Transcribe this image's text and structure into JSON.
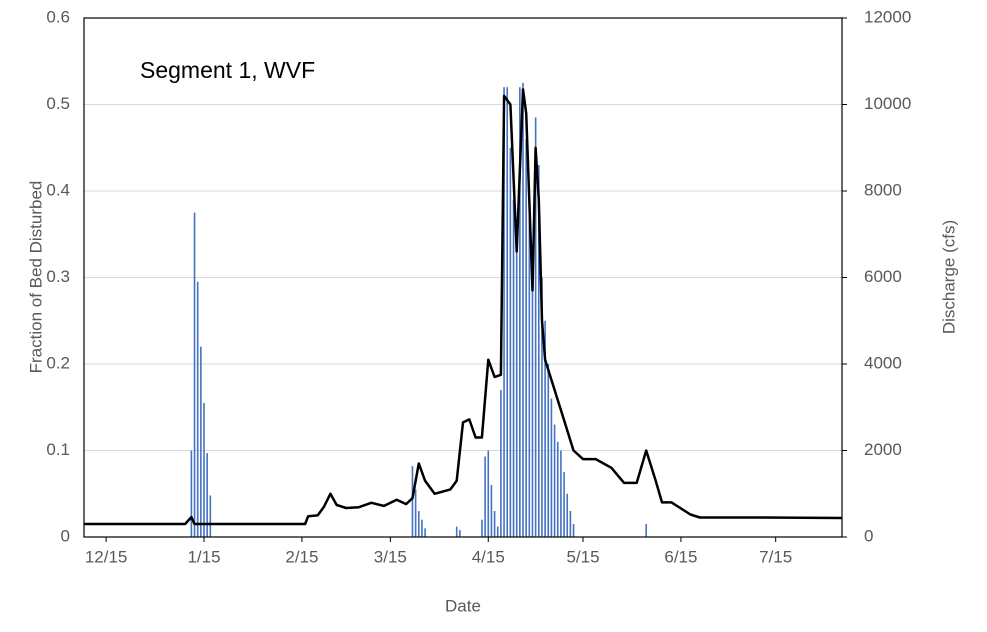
{
  "chart_data": {
    "type": "combo",
    "annotation": "Segment 1, WVF",
    "xlabel": "Date",
    "ylabel": "Fraction of Bed Disturbed",
    "y2label": "Discharge (cfs)",
    "xlim": [
      "12/8",
      "8/5"
    ],
    "xticks": [
      "12/15",
      "1/15",
      "2/15",
      "3/15",
      "4/15",
      "5/15",
      "6/15",
      "7/15"
    ],
    "ylim": [
      0,
      0.6
    ],
    "yticks": [
      0,
      0.1,
      0.2,
      0.3,
      0.4,
      0.5,
      0.6
    ],
    "y2lim": [
      0,
      12000
    ],
    "y2ticks": [
      0,
      2000,
      4000,
      6000,
      8000,
      10000,
      12000
    ],
    "grid": true,
    "series": [
      {
        "type": "bar",
        "color": "#4472c4",
        "x": [
          "1/11",
          "1/12",
          "1/13",
          "1/14",
          "1/15",
          "1/16",
          "1/17",
          "3/22",
          "3/23",
          "3/24",
          "3/25",
          "3/26",
          "4/5",
          "4/6",
          "4/13",
          "4/14",
          "4/15",
          "4/16",
          "4/17",
          "4/18",
          "4/19",
          "4/20",
          "4/21",
          "4/22",
          "4/23",
          "4/24",
          "4/25",
          "4/26",
          "4/27",
          "4/28",
          "4/29",
          "4/30",
          "5/1",
          "5/2",
          "5/3",
          "5/4",
          "5/5",
          "5/6",
          "5/7",
          "5/8",
          "5/9",
          "5/10",
          "5/11",
          "5/12",
          "6/4"
        ],
        "values": [
          0.1,
          0.375,
          0.295,
          0.22,
          0.155,
          0.097,
          0.048,
          0.082,
          0.055,
          0.03,
          0.02,
          0.01,
          0.012,
          0.008,
          0.02,
          0.093,
          0.1,
          0.06,
          0.03,
          0.012,
          0.17,
          0.52,
          0.52,
          0.45,
          0.39,
          0.35,
          0.52,
          0.525,
          0.46,
          0.37,
          0.3,
          0.485,
          0.43,
          0.3,
          0.25,
          0.2,
          0.16,
          0.13,
          0.11,
          0.1,
          0.075,
          0.05,
          0.03,
          0.015,
          0.015
        ]
      },
      {
        "type": "line",
        "color": "#000000",
        "axis": "y2",
        "x": [
          "12/8",
          "12/29",
          "1/9",
          "1/11",
          "1/12",
          "1/26",
          "2/16",
          "2/17",
          "2/20",
          "2/22",
          "2/24",
          "2/26",
          "3/1",
          "3/5",
          "3/9",
          "3/13",
          "3/17",
          "3/20",
          "3/22",
          "3/24",
          "3/26",
          "3/29",
          "4/3",
          "4/5",
          "4/7",
          "4/9",
          "4/11",
          "4/13",
          "4/15",
          "4/17",
          "4/19",
          "4/20",
          "4/22",
          "4/24",
          "4/26",
          "4/27",
          "4/29",
          "4/30",
          "5/1",
          "5/2",
          "5/3",
          "5/6",
          "5/9",
          "5/12",
          "5/15",
          "5/19",
          "5/24",
          "5/28",
          "6/1",
          "6/4",
          "6/7",
          "6/9",
          "6/12",
          "6/18",
          "6/21",
          "7/10",
          "8/5"
        ],
        "values": [
          300,
          300,
          300,
          460,
          300,
          300,
          300,
          480,
          500,
          700,
          1000,
          740,
          670,
          690,
          790,
          720,
          860,
          760,
          900,
          1700,
          1300,
          1000,
          1100,
          1300,
          2650,
          2720,
          2300,
          2300,
          4100,
          3700,
          3750,
          10200,
          10000,
          6600,
          10350,
          9800,
          5700,
          9000,
          7800,
          5000,
          4100,
          3400,
          2700,
          2000,
          1800,
          1800,
          1600,
          1250,
          1250,
          2000,
          1300,
          800,
          800,
          520,
          450,
          450,
          440
        ]
      }
    ]
  }
}
